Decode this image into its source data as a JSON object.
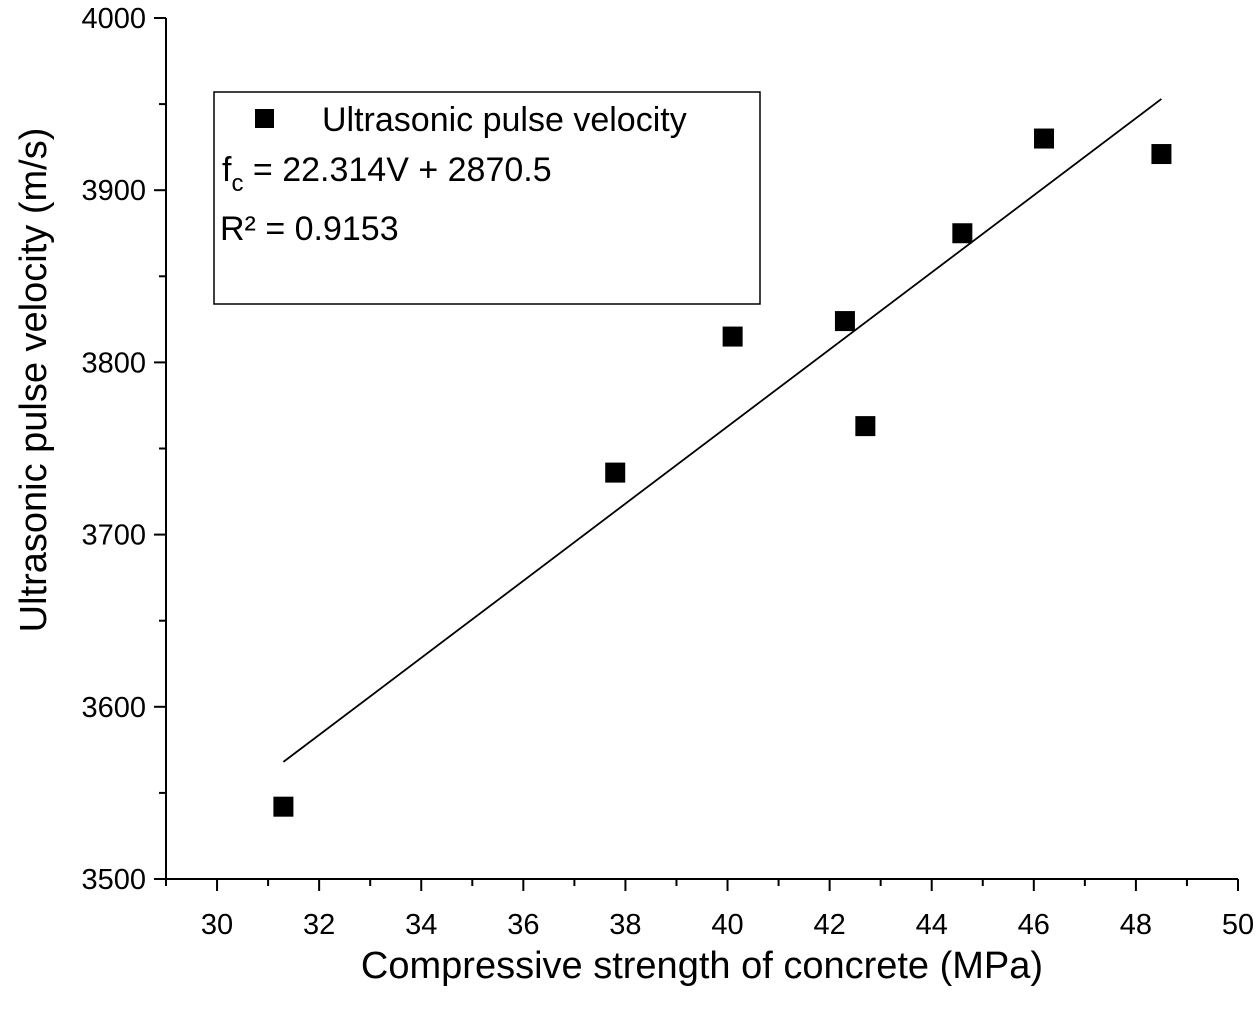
{
  "chart_data": {
    "type": "scatter",
    "title": "",
    "xlabel": "Compressive strength of concrete (MPa)",
    "ylabel": "Ultrasonic pulse velocity (m/s)",
    "xlim": [
      29,
      50
    ],
    "ylim": [
      3500,
      4000
    ],
    "x_ticks": [
      30,
      32,
      34,
      36,
      38,
      40,
      42,
      44,
      46,
      48,
      50
    ],
    "y_ticks": [
      3500,
      3600,
      3700,
      3800,
      3900,
      4000
    ],
    "grid": false,
    "legend_position": "top-left",
    "series": [
      {
        "name": "Ultrasonic pulse velocity",
        "marker": "square",
        "color": "#000000",
        "x": [
          31.3,
          37.8,
          40.1,
          42.3,
          42.7,
          44.6,
          46.2,
          48.5
        ],
        "y": [
          3542,
          3736,
          3815,
          3824,
          3763,
          3875,
          3930,
          3921
        ]
      }
    ],
    "fit_line": {
      "x_start": 31.3,
      "x_end": 48.5,
      "y_start": 3568,
      "y_end": 3953
    },
    "annotations": {
      "equation_main": "f",
      "equation_sub": "c",
      "equation_rest": " = 22.314V + 2870.5",
      "r_squared": "R² = 0.9153"
    }
  }
}
